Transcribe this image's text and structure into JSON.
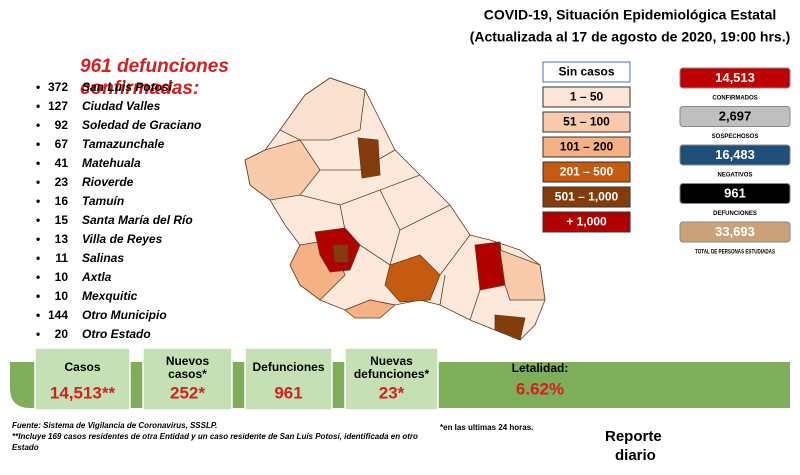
{
  "header": {
    "title": "COVID-19, Situación Epidemiológica Estatal",
    "subtitle": "(Actualizada al 17 de agosto de 2020, 19:00 hrs.)"
  },
  "deaths": {
    "title": [
      "961 defunciones",
      "confirmadas:"
    ],
    "rows": [
      [
        372,
        "San Luis Potosí"
      ],
      [
        127,
        "Ciudad Valles"
      ],
      [
        92,
        "Soledad de Graciano"
      ],
      [
        67,
        "Tamazunchale"
      ],
      [
        41,
        "Matehuala"
      ],
      [
        23,
        "Rioverde"
      ],
      [
        16,
        "Tamuín"
      ],
      [
        15,
        "Santa María del Río"
      ],
      [
        13,
        "Villa de Reyes"
      ],
      [
        11,
        "Salinas"
      ],
      [
        10,
        "Axtla"
      ],
      [
        10,
        "Mexquitic"
      ],
      [
        144,
        "Otro Municipio"
      ],
      [
        20,
        "Otro Estado"
      ]
    ]
  },
  "legend": [
    {
      "label": "Sin casos",
      "color": "#ffffff"
    },
    {
      "label": "1 – 50",
      "color": "#fce4d6"
    },
    {
      "label": "51 – 100",
      "color": "#f8cbad"
    },
    {
      "label": "101 – 200",
      "color": "#f4b183"
    },
    {
      "label": "201 – 500",
      "color": "#c55a11"
    },
    {
      "label": "501 – 1,000",
      "color": "#843c0c"
    },
    {
      "label": "+ 1,000",
      "color": "#b00000"
    }
  ],
  "stats": [
    {
      "value": "14,513",
      "label": "CONFIRMADOS",
      "color": "#c00000"
    },
    {
      "value": "2,697",
      "label": "SOSPECHOSOS",
      "color": "#bfbfbf"
    },
    {
      "value": "16,483",
      "label": "NEGATIVOS",
      "color": "#1f4e79"
    },
    {
      "value": "961",
      "label": "DEFUNCIONES",
      "color": "#000000"
    },
    {
      "value": "33,693",
      "label": "TOTAL DE PERSONAS ESTUDIADAS",
      "color": "#c9a27a"
    }
  ],
  "banner": [
    {
      "label": "Casos",
      "value": "14,513**"
    },
    {
      "label": "Nuevos casos*",
      "value": "252*"
    },
    {
      "label": "Defunciones",
      "value": "961"
    },
    {
      "label": "Nuevas defunciones*",
      "value": "23*"
    },
    {
      "label": "Letalidad:",
      "value": "6.62%"
    }
  ],
  "footer": {
    "source": "Fuente: Sistema de Vigilancia de Coronavirus, SSSLP.",
    "note24": "*en las ultimas 24 horas.",
    "note": "**Incluye 169 casos residentes de otra Entidad y un caso residente de San Luis Potosí, identificada en otro Estado",
    "report": [
      "Reporte",
      "diario"
    ]
  }
}
